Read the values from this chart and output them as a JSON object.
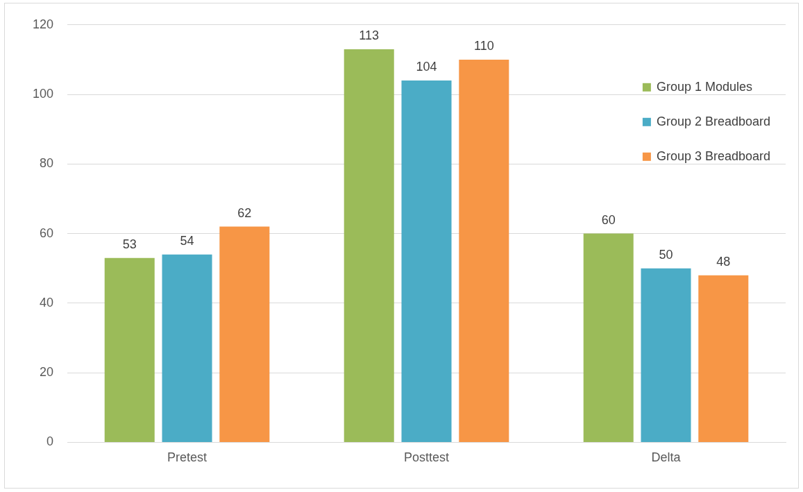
{
  "chart_data": {
    "type": "bar",
    "categories": [
      "Pretest",
      "Posttest",
      "Delta"
    ],
    "series": [
      {
        "name": "Group 1 Modules",
        "color": "#9bbb59",
        "values": [
          53,
          113,
          60
        ]
      },
      {
        "name": "Group 2 Breadboard",
        "color": "#4bacc6",
        "values": [
          54,
          104,
          50
        ]
      },
      {
        "name": "Group 3 Breadboard",
        "color": "#f79646",
        "values": [
          62,
          110,
          48
        ]
      }
    ],
    "ylim": [
      0,
      120
    ],
    "yticks": [
      0,
      20,
      40,
      60,
      80,
      100,
      120
    ],
    "grid": "y",
    "legend": "right",
    "data_labels": true
  }
}
